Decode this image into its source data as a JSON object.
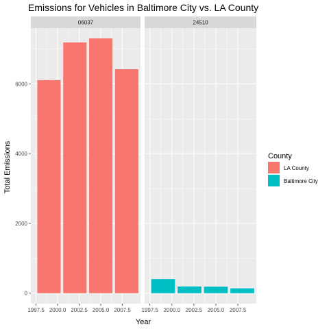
{
  "chart_data": {
    "type": "bar",
    "title": "Emissions for Vehicles in Baltimore City vs. LA County",
    "xlabel": "Year",
    "ylabel": "Total Emissions",
    "xlim": [
      1996.9,
      2009.6
    ],
    "ylim": [
      -300,
      7600
    ],
    "x_ticks": [
      1997.5,
      2000.0,
      2002.5,
      2005.0,
      2007.5
    ],
    "x_tick_labels": [
      "1997.5",
      "2000.0",
      "2002.5",
      "2005.0",
      "2007.5"
    ],
    "y_ticks": [
      0,
      2000,
      4000,
      6000
    ],
    "y_tick_labels": [
      "0",
      "2000",
      "4000",
      "6000"
    ],
    "x": [
      1999,
      2002,
      2005,
      2008
    ],
    "bar_width": 2.7,
    "panels": [
      {
        "strip_label": "06037",
        "series_name": "LA County",
        "color": "#F8766D",
        "values": [
          6109,
          7189,
          7305,
          6421
        ]
      },
      {
        "strip_label": "24510",
        "series_name": "Baltimore City",
        "color": "#00BFC4",
        "values": [
          404,
          192,
          186,
          139
        ]
      }
    ],
    "legend": {
      "title": "County",
      "placement": "right",
      "items": [
        {
          "label": "LA County",
          "color": "#F8766D"
        },
        {
          "label": "Baltimore City",
          "color": "#00BFC4"
        }
      ]
    },
    "grid": true,
    "panel_background": "#EBEBEB",
    "strip_background": "#D9D9D9"
  }
}
